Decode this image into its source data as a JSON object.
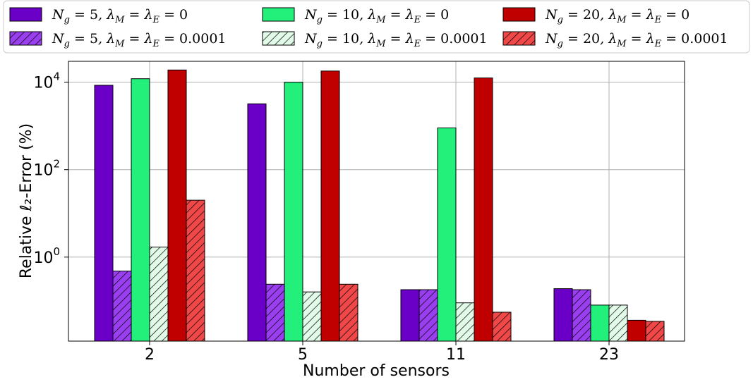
{
  "chart_data": {
    "type": "bar",
    "xlabel": "Number of sensors",
    "ylabel": "Relative ℓ₂-Error (%)",
    "yscale": "log",
    "ylim": [
      0.012,
      30000
    ],
    "yticks": [
      {
        "value": 1,
        "base": "10",
        "exp": "0"
      },
      {
        "value": 100,
        "base": "10",
        "exp": "2"
      },
      {
        "value": 10000,
        "base": "10",
        "exp": "4"
      }
    ],
    "grid": true,
    "legend_position": "top",
    "categories": [
      "2",
      "5",
      "11",
      "23"
    ],
    "series": [
      {
        "name": "N_g = 5, λ_M = λ_E = 0",
        "color": "#6a00c8",
        "hatch": false,
        "values": [
          8500,
          3200,
          0.18,
          0.19
        ]
      },
      {
        "name": "N_g = 5, λ_M = λ_E = 0.0001",
        "color": "#9a3ff0",
        "hatch": true,
        "values": [
          0.48,
          0.24,
          0.18,
          0.18
        ]
      },
      {
        "name": "N_g = 10, λ_M = λ_E = 0",
        "color": "#22f07a",
        "hatch": false,
        "values": [
          12000,
          10000,
          900,
          0.08
        ]
      },
      {
        "name": "N_g = 10, λ_M = λ_E = 0.0001",
        "color": "#e2fbe8",
        "hatch": true,
        "values": [
          1.7,
          0.16,
          0.09,
          0.08
        ]
      },
      {
        "name": "N_g = 20, λ_M = λ_E = 0",
        "color": "#c00000",
        "hatch": false,
        "values": [
          19000,
          18000,
          12500,
          0.036
        ]
      },
      {
        "name": "N_g = 20, λ_M = λ_E = 0.0001",
        "color": "#f04848",
        "hatch": true,
        "values": [
          20,
          0.24,
          0.055,
          0.034
        ]
      }
    ],
    "legend": [
      {
        "ng": "5",
        "lambda": "0"
      },
      {
        "ng": "5",
        "lambda": "0.0001"
      },
      {
        "ng": "10",
        "lambda": "0"
      },
      {
        "ng": "10",
        "lambda": "0.0001"
      },
      {
        "ng": "20",
        "lambda": "0"
      },
      {
        "ng": "20",
        "lambda": "0.0001"
      }
    ]
  }
}
